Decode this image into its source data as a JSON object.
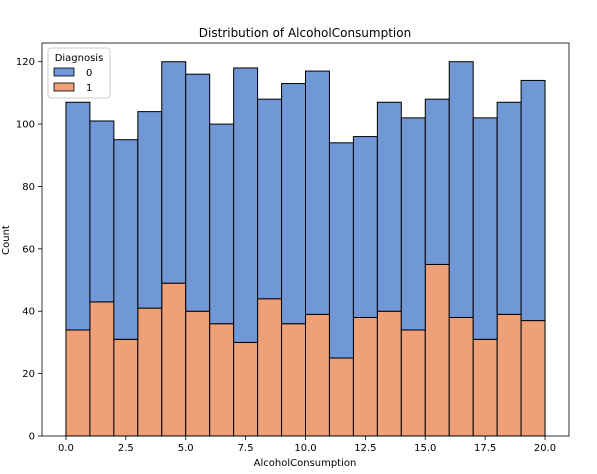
{
  "chart_data": {
    "type": "bar",
    "stacked": true,
    "title": "Distribution of AlcoholConsumption",
    "xlabel": "AlcoholConsumption",
    "ylabel": "Count",
    "xlim": [
      -1,
      21
    ],
    "ylim": [
      0,
      126
    ],
    "x_ticks": [
      "0.0",
      "2.5",
      "5.0",
      "7.5",
      "10.0",
      "12.5",
      "15.0",
      "17.5",
      "20.0"
    ],
    "x_tick_values": [
      0,
      2.5,
      5,
      7.5,
      10,
      12.5,
      15,
      17.5,
      20
    ],
    "y_ticks": [
      "0",
      "20",
      "40",
      "60",
      "80",
      "100",
      "120"
    ],
    "y_tick_values": [
      0,
      20,
      40,
      60,
      80,
      100,
      120
    ],
    "bin_edges": [
      0,
      1,
      2,
      3,
      4,
      5,
      6,
      7,
      8,
      9,
      10,
      11,
      12,
      13,
      14,
      15,
      16,
      17,
      18,
      19,
      20
    ],
    "legend": {
      "title": "Diagnosis",
      "position": "upper-left"
    },
    "series": [
      {
        "name": "1",
        "color": "#f0a077",
        "values": [
          34,
          43,
          31,
          41,
          49,
          40,
          36,
          30,
          44,
          36,
          39,
          25,
          38,
          40,
          34,
          55,
          38,
          31,
          39,
          37
        ]
      },
      {
        "name": "0",
        "color": "#7097d6",
        "values": [
          73,
          58,
          64,
          63,
          71,
          76,
          64,
          88,
          64,
          77,
          78,
          69,
          58,
          67,
          68,
          53,
          82,
          71,
          68,
          77
        ]
      }
    ],
    "grid": false
  }
}
